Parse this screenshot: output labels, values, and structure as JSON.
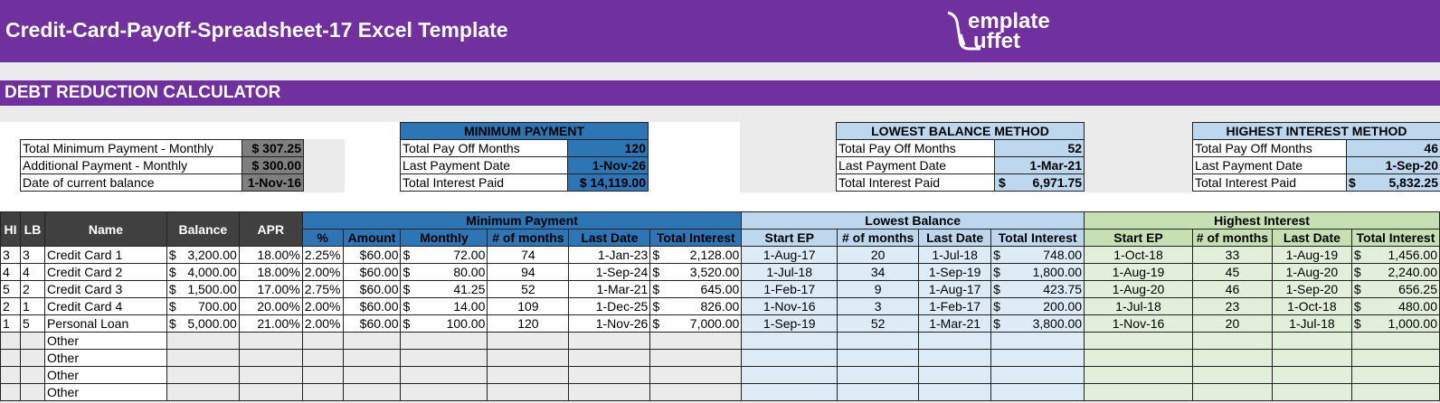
{
  "header": {
    "title": "Credit-Card-Payoff-Spreadsheet-17 Excel Template",
    "logo_text": [
      "emplate",
      "uffet"
    ]
  },
  "section_title": "DEBT REDUCTION CALCULATOR",
  "inputs": {
    "rows": [
      {
        "label": "Total Minimum Payment - Monthly",
        "value": "$ 307.25"
      },
      {
        "label": "Additional Payment - Monthly",
        "value": "$ 300.00"
      },
      {
        "label": "Date of current balance",
        "value": "1-Nov-16"
      }
    ]
  },
  "summaries": {
    "minimum": {
      "title": "MINIMUM PAYMENT",
      "rows": [
        {
          "label": "Total Pay Off Months",
          "value": "120"
        },
        {
          "label": "Last Payment Date",
          "value": "1-Nov-26"
        },
        {
          "label": "Total Interest Paid",
          "value": "$ 14,119.00"
        }
      ]
    },
    "lowest": {
      "title": "LOWEST BALANCE METHOD",
      "rows": [
        {
          "label": "Total Pay Off Months",
          "cur": "",
          "value": "52"
        },
        {
          "label": "Last Payment Date",
          "cur": "",
          "value": "1-Mar-21"
        },
        {
          "label": "Total Interest Paid",
          "cur": "$",
          "value": "6,971.75"
        }
      ]
    },
    "highest": {
      "title": "HIGHEST INTEREST METHOD",
      "rows": [
        {
          "label": "Total Pay Off Months",
          "cur": "",
          "value": "46"
        },
        {
          "label": "Last Payment Date",
          "cur": "",
          "value": "1-Sep-20"
        },
        {
          "label": "Total Interest Paid",
          "cur": "$",
          "value": "5,832.25"
        }
      ]
    }
  },
  "table": {
    "group_headers": {
      "minimum": "Minimum Payment",
      "lowest": "Lowest Balance",
      "highest": "Highest Interest"
    },
    "columns": {
      "hi": "HI",
      "lb": "LB",
      "name": "Name",
      "balance": "Balance",
      "apr": "APR",
      "pct": "%",
      "amount": "Amount",
      "monthly": "Monthly",
      "months": "# of months",
      "last_date": "Last Date",
      "total_interest": "Total Interest",
      "start_ep": "Start EP"
    },
    "rows": [
      {
        "hi": "3",
        "lb": "3",
        "name": "Credit Card 1",
        "balance": "3,200.00",
        "apr": "18.00%",
        "pct": "2.25%",
        "amount": "$60.00",
        "monthly": "72.00",
        "months": "74",
        "last": "1-Jan-23",
        "interest": "2,128.00",
        "lb_start": "1-Aug-17",
        "lb_months": "20",
        "lb_last": "1-Jul-18",
        "lb_interest": "748.00",
        "hg_start": "1-Oct-18",
        "hg_months": "33",
        "hg_last": "1-Aug-19",
        "hg_interest": "1,456.00"
      },
      {
        "hi": "4",
        "lb": "4",
        "name": "Credit Card 2",
        "balance": "4,000.00",
        "apr": "18.00%",
        "pct": "2.00%",
        "amount": "$60.00",
        "monthly": "80.00",
        "months": "94",
        "last": "1-Sep-24",
        "interest": "3,520.00",
        "lb_start": "1-Jul-18",
        "lb_months": "34",
        "lb_last": "1-Sep-19",
        "lb_interest": "1,800.00",
        "hg_start": "1-Aug-19",
        "hg_months": "45",
        "hg_last": "1-Aug-20",
        "hg_interest": "2,240.00"
      },
      {
        "hi": "5",
        "lb": "2",
        "name": "Credit Card 3",
        "balance": "1,500.00",
        "apr": "17.00%",
        "pct": "2.75%",
        "amount": "$60.00",
        "monthly": "41.25",
        "months": "52",
        "last": "1-Mar-21",
        "interest": "645.00",
        "lb_start": "1-Feb-17",
        "lb_months": "9",
        "lb_last": "1-Aug-17",
        "lb_interest": "423.75",
        "hg_start": "1-Aug-20",
        "hg_months": "46",
        "hg_last": "1-Sep-20",
        "hg_interest": "656.25"
      },
      {
        "hi": "2",
        "lb": "1",
        "name": "Credit Card 4",
        "balance": "700.00",
        "apr": "20.00%",
        "pct": "2.00%",
        "amount": "$60.00",
        "monthly": "14.00",
        "months": "109",
        "last": "1-Dec-25",
        "interest": "826.00",
        "lb_start": "1-Nov-16",
        "lb_months": "3",
        "lb_last": "1-Feb-17",
        "lb_interest": "200.00",
        "hg_start": "1-Jul-18",
        "hg_months": "23",
        "hg_last": "1-Oct-18",
        "hg_interest": "480.00"
      },
      {
        "hi": "1",
        "lb": "5",
        "name": "Personal Loan",
        "balance": "5,000.00",
        "apr": "21.00%",
        "pct": "2.00%",
        "amount": "$60.00",
        "monthly": "100.00",
        "months": "120",
        "last": "1-Nov-26",
        "interest": "7,000.00",
        "lb_start": "1-Sep-19",
        "lb_months": "52",
        "lb_last": "1-Mar-21",
        "lb_interest": "3,800.00",
        "hg_start": "1-Nov-16",
        "hg_months": "20",
        "hg_last": "1-Jul-18",
        "hg_interest": "1,000.00"
      }
    ],
    "empty_rows": [
      "Other",
      "Other",
      "Other",
      "Other"
    ],
    "currency": "$"
  },
  "colors": {
    "brand_purple": "#7030a0",
    "min_blue": "#2e75b6",
    "light_blue": "#bdd7ee",
    "light_green": "#c6e0b4"
  }
}
